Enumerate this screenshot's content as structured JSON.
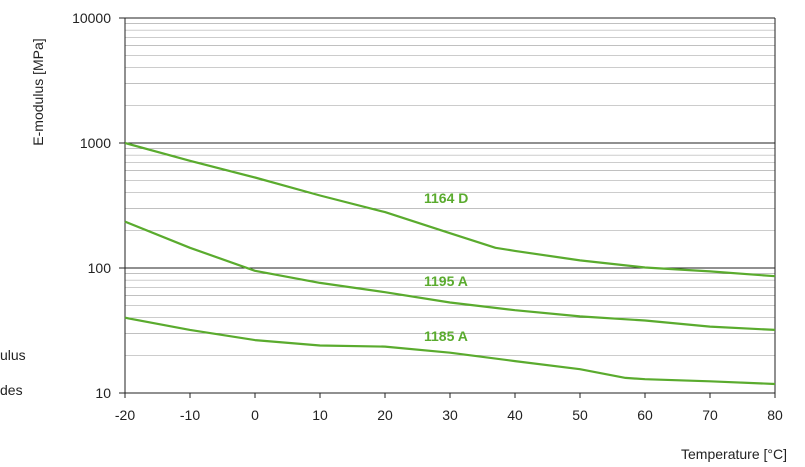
{
  "chart_data": {
    "type": "line",
    "title": "",
    "xlabel": "Temperature [°C]",
    "ylabel": "E-modulus [MPa]",
    "xlim": [
      -20,
      80
    ],
    "ylim": [
      10,
      10000
    ],
    "yscale": "log",
    "grid": true,
    "x_ticks": [
      "-20",
      "-10",
      "0",
      "10",
      "20",
      "30",
      "40",
      "50",
      "60",
      "70",
      "80"
    ],
    "y_ticks": [
      "10",
      "100",
      "1000",
      "10000"
    ],
    "line_color": "#5aab2e",
    "series": [
      {
        "name": "1164 D",
        "x": [
          -20,
          -10,
          0,
          10,
          20,
          30,
          37,
          40,
          50,
          60,
          70,
          80
        ],
        "y": [
          1000,
          720,
          530,
          380,
          280,
          190,
          145,
          137,
          115,
          101,
          94,
          86
        ]
      },
      {
        "name": "1195 A",
        "x": [
          -20,
          -10,
          0,
          10,
          20,
          30,
          40,
          50,
          60,
          70,
          80
        ],
        "y": [
          235,
          145,
          95,
          76,
          64,
          53,
          46,
          41,
          38,
          34,
          32
        ]
      },
      {
        "name": "1185 A",
        "x": [
          -20,
          -10,
          0,
          10,
          20,
          30,
          40,
          50,
          57,
          60,
          70,
          80
        ],
        "y": [
          40,
          32,
          26.5,
          24,
          23.5,
          21,
          18,
          15.5,
          13.2,
          12.9,
          12.4,
          11.8
        ]
      }
    ]
  },
  "cropped_text": {
    "line1": "ulus",
    "line2": "des"
  }
}
